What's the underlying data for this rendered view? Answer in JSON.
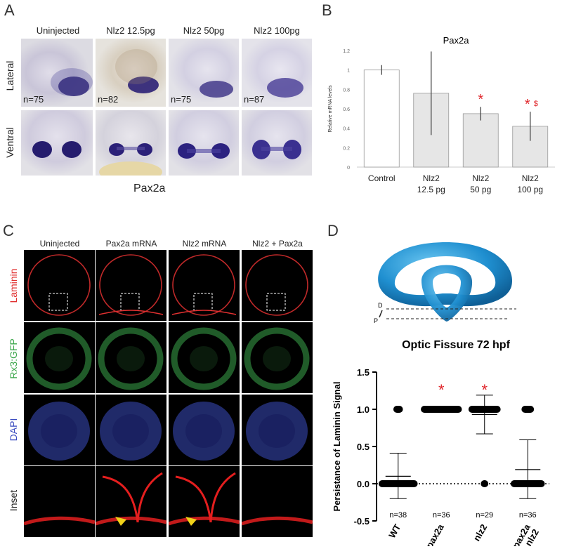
{
  "panelA": {
    "label": "A",
    "columns": [
      "Uninjected",
      "Nlz2 12.5pg",
      "Nlz2 50pg",
      "Nlz2 100pg"
    ],
    "rows": [
      "Lateral",
      "Ventral"
    ],
    "counts": [
      "n=75",
      "n=82",
      "n=75",
      "n=87"
    ],
    "caption": "Pax2a"
  },
  "panelB": {
    "label": "B",
    "chart_data": {
      "type": "bar",
      "title": "Pax2a",
      "ylabel": "Relative mRNA levels",
      "ylim": [
        0,
        1.2
      ],
      "yticks": [
        "0",
        "0.2",
        "0.4",
        "0.6",
        "0.8",
        "1",
        "1.2"
      ],
      "categories": [
        [
          "Control"
        ],
        [
          "Nlz2",
          "12.5 pg"
        ],
        [
          "Nlz2",
          "50 pg"
        ],
        [
          "Nlz2",
          "100 pg"
        ]
      ],
      "values": [
        1.0,
        0.76,
        0.55,
        0.42
      ],
      "error_low": [
        0.95,
        0.33,
        0.48,
        0.27
      ],
      "error_high": [
        1.05,
        1.19,
        0.62,
        0.57
      ],
      "annotations": [
        "",
        "",
        "*",
        "*$"
      ],
      "colors": {
        "control": "#ffffff",
        "treated": "#e6e6e6",
        "annotation": "#e0262b"
      }
    }
  },
  "panelC": {
    "label": "C",
    "columns": [
      "Uninjected",
      "Pax2a mRNA",
      "Nlz2 mRNA",
      "Nlz2 + Pax2a"
    ],
    "rows": [
      "Laminin",
      "Rx3:GFP",
      "DAPI",
      "Inset"
    ],
    "row_colors": [
      "#e03030",
      "#3aa64a",
      "#3b4cc0",
      "#222222"
    ]
  },
  "panelD": {
    "label": "D",
    "schematic_labels": [
      "D",
      "P"
    ],
    "chart_data": {
      "type": "scatter",
      "title": "Optic Fissure 72 hpf",
      "ylabel": "Persistance of Laminin Signal",
      "ylim": [
        -0.5,
        1.5
      ],
      "yticks": [
        "-0.5",
        "0.0",
        "0.5",
        "1.0",
        "1.5"
      ],
      "categories": [
        "WT",
        "pax2a",
        "nlz2",
        "pax2a + nlz2"
      ],
      "means": [
        0.1,
        1.0,
        0.93,
        0.19
      ],
      "sd_low": [
        -0.2,
        1.0,
        0.67,
        -0.2
      ],
      "sd_high": [
        0.41,
        1.0,
        1.19,
        0.59
      ],
      "n_labels": [
        "n=38",
        "n=36",
        "n=29",
        "n=36"
      ],
      "count_at_one": [
        4,
        36,
        27,
        7
      ],
      "count_at_zero": [
        34,
        0,
        2,
        29
      ],
      "annotations": [
        "",
        "*",
        "*",
        ""
      ],
      "colors": {
        "annotation": "#e0262b",
        "torus": "#1f8fd0"
      }
    }
  }
}
